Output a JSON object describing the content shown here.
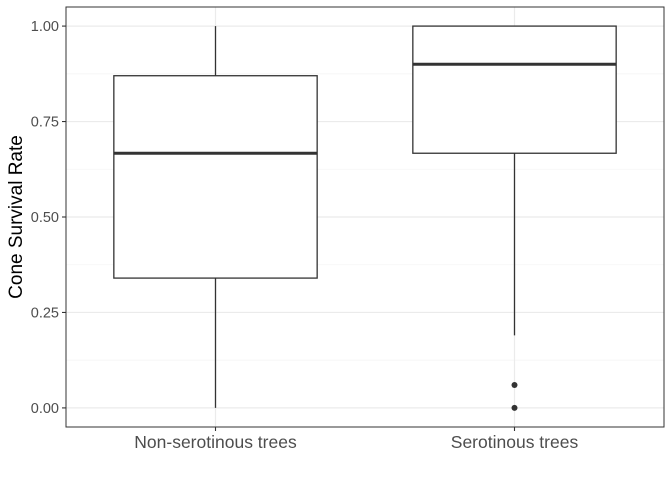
{
  "chart_data": {
    "type": "boxplot",
    "title": "",
    "xlabel": "",
    "ylabel": "Cone Survival Rate",
    "ylim": [
      -0.05,
      1.05
    ],
    "yticks": [
      0.0,
      0.25,
      0.5,
      0.75,
      1.0
    ],
    "ytick_labels": [
      "0.00",
      "0.25",
      "0.50",
      "0.75",
      "1.00"
    ],
    "grid": true,
    "categories": [
      "Non-serotinous trees",
      "Serotinous trees"
    ],
    "boxes": [
      {
        "category": "Non-serotinous trees",
        "whisker_low": 0.0,
        "q1": 0.34,
        "median": 0.667,
        "q3": 0.87,
        "whisker_high": 1.0,
        "outliers": []
      },
      {
        "category": "Serotinous trees",
        "whisker_low": 0.19,
        "q1": 0.667,
        "median": 0.9,
        "q3": 1.0,
        "whisker_high": 1.0,
        "outliers": [
          0.06,
          0.0
        ]
      }
    ],
    "colors": {
      "box_line": "#333333",
      "grid_major": "#ebebeb",
      "grid_minor": "#f5f5f5",
      "panel_border": "#333333"
    }
  }
}
